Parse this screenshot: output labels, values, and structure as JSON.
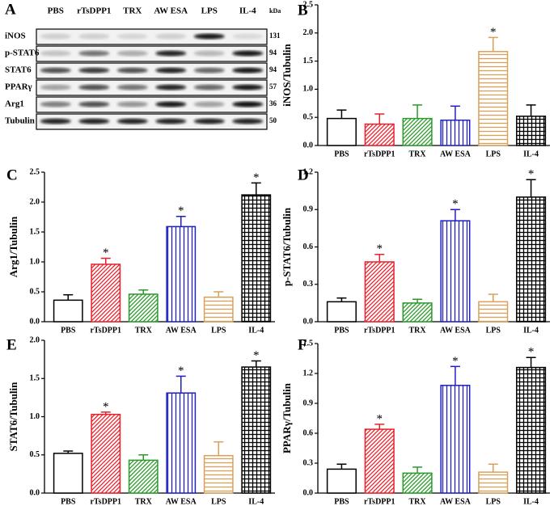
{
  "blot": {
    "panel": "A",
    "lanes": [
      "PBS",
      "rTsDPP1",
      "TRX",
      "AW ESA",
      "LPS",
      "IL-4"
    ],
    "proteins": [
      "iNOS",
      "p-STAT6",
      "STAT6",
      "PPARγ",
      "Arg1",
      "Tubulin"
    ],
    "kda_header": "kDa",
    "kda": [
      131,
      94,
      94,
      57,
      36,
      50
    ]
  },
  "chart_data": [
    {
      "type": "bar",
      "panel": "B",
      "ylabel": "iNOS/Tubulin",
      "categories": [
        "PBS",
        "rTsDPP1",
        "TRX",
        "AW ESA",
        "LPS",
        "IL-4"
      ],
      "values": [
        0.48,
        0.38,
        0.48,
        0.45,
        1.67,
        0.52
      ],
      "errors": [
        0.15,
        0.18,
        0.24,
        0.25,
        0.25,
        0.2
      ],
      "significance": [
        null,
        null,
        null,
        null,
        "*",
        null
      ],
      "colors": [
        "#000000",
        "#e8202a",
        "#2a9a2a",
        "#2020c0",
        "#d9a05b",
        "#000000"
      ],
      "patterns": [
        "none",
        "diagonal",
        "diagonal",
        "vertical",
        "horizontal",
        "grid"
      ],
      "ylim": [
        0,
        2.5
      ],
      "yticks": [
        {
          "value": 0,
          "label": "0.0"
        },
        0.5,
        {
          "value": 1,
          "label": "1.0"
        },
        1.5,
        {
          "value": 2,
          "label": "2.0"
        },
        2.5
      ]
    },
    {
      "type": "bar",
      "panel": "C",
      "ylabel": "Arg1/Tubulin",
      "categories": [
        "PBS",
        "rTsDPP1",
        "TRX",
        "AW ESA",
        "LPS",
        "IL-4"
      ],
      "values": [
        0.36,
        0.96,
        0.46,
        1.59,
        0.41,
        2.12
      ],
      "errors": [
        0.09,
        0.1,
        0.07,
        0.17,
        0.09,
        0.2
      ],
      "significance": [
        null,
        "*",
        null,
        "*",
        null,
        "*"
      ],
      "colors": [
        "#000000",
        "#e8202a",
        "#2a9a2a",
        "#2020c0",
        "#d9a05b",
        "#000000"
      ],
      "patterns": [
        "none",
        "diagonal",
        "diagonal",
        "vertical",
        "horizontal",
        "grid"
      ],
      "ylim": [
        0,
        2.5
      ],
      "yticks": [
        {
          "value": 0,
          "label": "0.0"
        },
        0.5,
        {
          "value": 1,
          "label": "1.0"
        },
        1.5,
        {
          "value": 2,
          "label": "2.0"
        },
        2.5
      ]
    },
    {
      "type": "bar",
      "panel": "D",
      "ylabel": "p-STAT6/Tubulin",
      "categories": [
        "PBS",
        "rTsDPP1",
        "TRX",
        "AW ESA",
        "LPS",
        "IL-4"
      ],
      "values": [
        0.16,
        0.48,
        0.15,
        0.81,
        0.16,
        1.0
      ],
      "errors": [
        0.03,
        0.06,
        0.03,
        0.09,
        0.06,
        0.14
      ],
      "significance": [
        null,
        "*",
        null,
        "*",
        null,
        "*"
      ],
      "colors": [
        "#000000",
        "#e8202a",
        "#2a9a2a",
        "#2020c0",
        "#d9a05b",
        "#000000"
      ],
      "patterns": [
        "none",
        "diagonal",
        "diagonal",
        "vertical",
        "horizontal",
        "grid"
      ],
      "ylim": [
        0,
        1.2
      ],
      "yticks": [
        {
          "value": 0,
          "label": "0.0"
        },
        0.3,
        0.6,
        0.9,
        1.2
      ]
    },
    {
      "type": "bar",
      "panel": "E",
      "ylabel": "STAT6/Tubulin",
      "categories": [
        "PBS",
        "rTsDPP1",
        "TRX",
        "AW ESA",
        "LPS",
        "IL-4"
      ],
      "values": [
        0.52,
        1.03,
        0.43,
        1.31,
        0.49,
        1.65
      ],
      "errors": [
        0.03,
        0.03,
        0.07,
        0.22,
        0.18,
        0.08
      ],
      "significance": [
        null,
        "*",
        null,
        "*",
        null,
        "*"
      ],
      "colors": [
        "#000000",
        "#e8202a",
        "#2a9a2a",
        "#2020c0",
        "#d9a05b",
        "#000000"
      ],
      "patterns": [
        "none",
        "diagonal",
        "diagonal",
        "vertical",
        "horizontal",
        "grid"
      ],
      "ylim": [
        0,
        2.0
      ],
      "yticks": [
        {
          "value": 0,
          "label": "0.0"
        },
        0.5,
        {
          "value": 1,
          "label": "1.0"
        },
        1.5,
        {
          "value": 2,
          "label": "2.0"
        }
      ]
    },
    {
      "type": "bar",
      "panel": "F",
      "ylabel": "PPARγ/Tubulin",
      "categories": [
        "PBS",
        "rTsDPP1",
        "TRX",
        "AW ESA",
        "LPS",
        "IL-4"
      ],
      "values": [
        0.24,
        0.64,
        0.2,
        1.08,
        0.21,
        1.26
      ],
      "errors": [
        0.05,
        0.05,
        0.06,
        0.19,
        0.08,
        0.1
      ],
      "significance": [
        null,
        "*",
        null,
        "*",
        null,
        "*"
      ],
      "colors": [
        "#000000",
        "#e8202a",
        "#2a9a2a",
        "#2020c0",
        "#d9a05b",
        "#000000"
      ],
      "patterns": [
        "none",
        "diagonal",
        "diagonal",
        "vertical",
        "horizontal",
        "grid"
      ],
      "ylim": [
        0,
        1.5
      ],
      "yticks": [
        {
          "value": 0,
          "label": "0.0"
        },
        0.3,
        0.6,
        0.9,
        1.2,
        1.5
      ]
    }
  ]
}
